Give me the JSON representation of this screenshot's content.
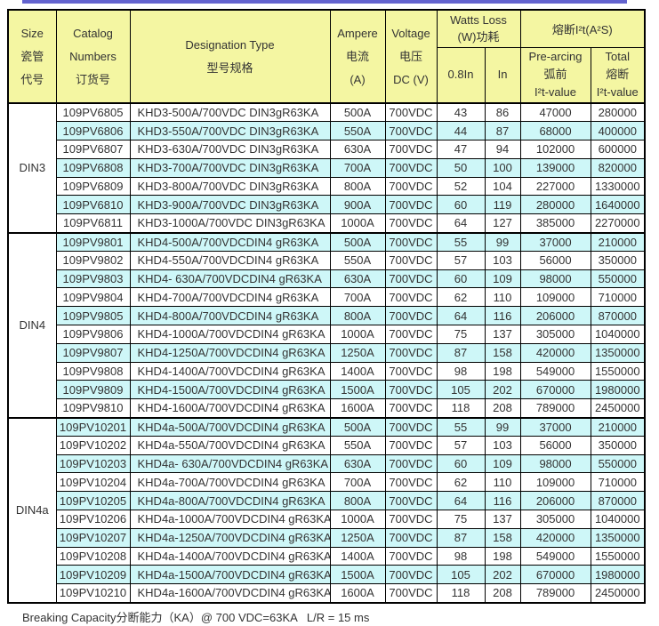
{
  "page": {
    "accent_bar_color": "#6363ce",
    "footer_note": "Breaking Capacity分断能力（KA）@ 700 VDC=63KA   L/R = 15 ms"
  },
  "colors": {
    "header_bg": "#f4f6a2",
    "stripe_bg": "#cef7f8",
    "row_bg": "#ffffff",
    "border": "#000000",
    "text": "#333333"
  },
  "table": {
    "header": {
      "size": "Size\n瓷管\n代号",
      "catalog": "Catalog\nNumbers\n订货号",
      "designation": "Designation Type\n型号规格",
      "ampere": "Ampere\n电流\n(A)",
      "voltage": "Voltage\n电压\nDC (V)",
      "watts_loss": "Watts Loss\n(W)功耗",
      "i2t": "熔断I²t(A²S)",
      "w08": "0.8In",
      "win": "In",
      "prearcing": "Pre-arcing\n弧前\nI²t-value",
      "total": "Total\n熔断\nI²t-value"
    },
    "groups": [
      {
        "size": "DIN3",
        "rows": [
          [
            "109PV6805",
            "KHD3-500A/700VDC DIN3gR63KA",
            "500A",
            "700VDC",
            "43",
            "86",
            "47000",
            "280000"
          ],
          [
            "109PV6806",
            "KHD3-550A/700VDC DIN3gR63KA",
            "550A",
            "700VDC",
            "44",
            "87",
            "68000",
            "400000"
          ],
          [
            "109PV6807",
            "KHD3-630A/700VDC DIN3gR63KA",
            "630A",
            "700VDC",
            "47",
            "94",
            "102000",
            "600000"
          ],
          [
            "109PV6808",
            "KHD3-700A/700VDC DIN3gR63KA",
            "700A",
            "700VDC",
            "50",
            "100",
            "139000",
            "820000"
          ],
          [
            "109PV6809",
            "KHD3-800A/700VDC DIN3gR63KA",
            "800A",
            "700VDC",
            "52",
            "104",
            "227000",
            "1330000"
          ],
          [
            "109PV6810",
            "KHD3-900A/700VDC DIN3gR63KA",
            "900A",
            "700VDC",
            "60",
            "119",
            "280000",
            "1640000"
          ],
          [
            "109PV6811",
            "KHD3-1000A/700VDC DIN3gR63KA",
            "1000A",
            "700VDC",
            "64",
            "127",
            "385000",
            "2270000"
          ]
        ]
      },
      {
        "size": "DIN4",
        "rows": [
          [
            "109PV9801",
            "KHD4-500A/700VDCDIN4 gR63KA",
            "500A",
            "700VDC",
            "55",
            "99",
            "37000",
            "210000"
          ],
          [
            "109PV9802",
            "KHD4-550A/700VDCDIN4 gR63KA",
            "550A",
            "700VDC",
            "57",
            "103",
            "56000",
            "350000"
          ],
          [
            "109PV9803",
            "KHD4- 630A/700VDCDIN4 gR63KA",
            "630A",
            "700VDC",
            "60",
            "109",
            "98000",
            "550000"
          ],
          [
            "109PV9804",
            "KHD4-700A/700VDCDIN4 gR63KA",
            "700A",
            "700VDC",
            "62",
            "110",
            "109000",
            "710000"
          ],
          [
            "109PV9805",
            "KHD4-800A/700VDCDIN4 gR63KA",
            "800A",
            "700VDC",
            "64",
            "116",
            "206000",
            "870000"
          ],
          [
            "109PV9806",
            "KHD4-1000A/700VDCDIN4 gR63KA",
            "1000A",
            "700VDC",
            "75",
            "137",
            "305000",
            "1040000"
          ],
          [
            "109PV9807",
            "KHD4-1250A/700VDCDIN4 gR63KA",
            "1250A",
            "700VDC",
            "87",
            "158",
            "420000",
            "1350000"
          ],
          [
            "109PV9808",
            "KHD4-1400A/700VDCDIN4 gR63KA",
            "1400A",
            "700VDC",
            "98",
            "198",
            "549000",
            "1550000"
          ],
          [
            "109PV9809",
            "KHD4-1500A/700VDCDIN4 gR63KA",
            "1500A",
            "700VDC",
            "105",
            "202",
            "670000",
            "1980000"
          ],
          [
            "109PV9810",
            "KHD4-1600A/700VDCDIN4 gR63KA",
            "1600A",
            "700VDC",
            "118",
            "208",
            "789000",
            "2450000"
          ]
        ]
      },
      {
        "size": "DIN4a",
        "rows": [
          [
            "109PV10201",
            "KHD4a-500A/700VDCDIN4 gR63KA",
            "500A",
            "700VDC",
            "55",
            "99",
            "37000",
            "210000"
          ],
          [
            "109PV10202",
            "KHD4a-550A/700VDCDIN4 gR63KA",
            "550A",
            "700VDC",
            "57",
            "103",
            "56000",
            "350000"
          ],
          [
            "109PV10203",
            "KHD4a- 630A/700VDCDIN4 gR63KA",
            "630A",
            "700VDC",
            "60",
            "109",
            "98000",
            "550000"
          ],
          [
            "109PV10204",
            "KHD4a-700A/700VDCDIN4 gR63KA",
            "700A",
            "700VDC",
            "62",
            "110",
            "109000",
            "710000"
          ],
          [
            "109PV10205",
            "KHD4a-800A/700VDCDIN4 gR63KA",
            "800A",
            "700VDC",
            "64",
            "116",
            "206000",
            "870000"
          ],
          [
            "109PV10206",
            "KHD4a-1000A/700VDCDIN4 gR63KA",
            "1000A",
            "700VDC",
            "75",
            "137",
            "305000",
            "1040000"
          ],
          [
            "109PV10207",
            "KHD4a-1250A/700VDCDIN4 gR63KA",
            "1250A",
            "700VDC",
            "87",
            "158",
            "420000",
            "1350000"
          ],
          [
            "109PV10208",
            "KHD4a-1400A/700VDCDIN4 gR63KA",
            "1400A",
            "700VDC",
            "98",
            "198",
            "549000",
            "1550000"
          ],
          [
            "109PV10209",
            "KHD4a-1500A/700VDCDIN4 gR63KA",
            "1500A",
            "700VDC",
            "105",
            "202",
            "670000",
            "1980000"
          ],
          [
            "109PV10210",
            "KHD4a-1600A/700VDCDIN4 gR63KA",
            "1600A",
            "700VDC",
            "118",
            "208",
            "789000",
            "2450000"
          ]
        ]
      }
    ]
  }
}
